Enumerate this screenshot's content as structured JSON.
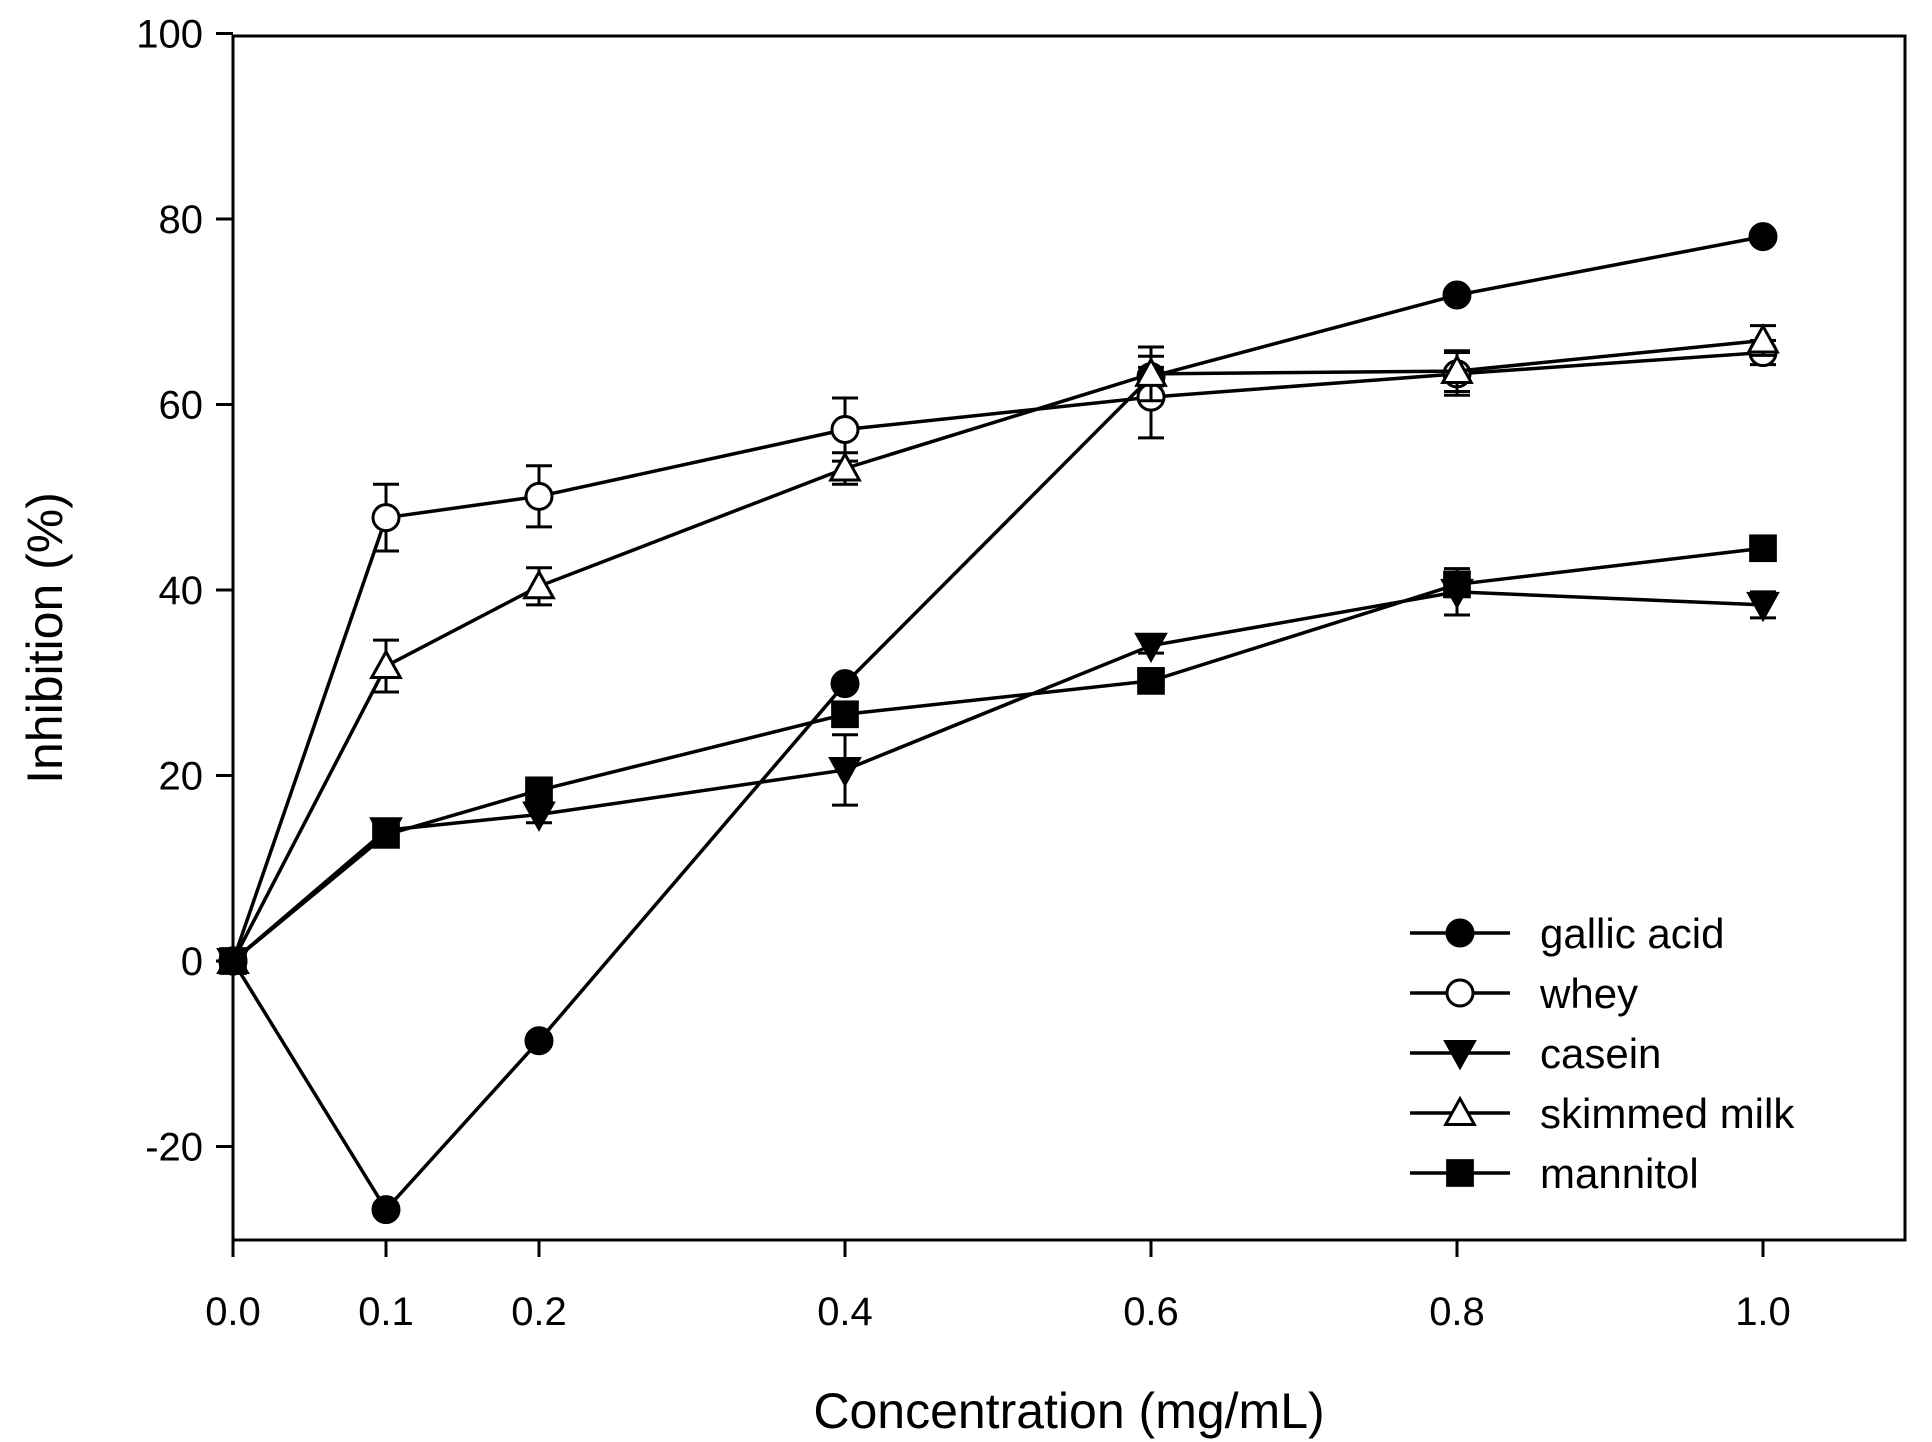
{
  "chart_data": {
    "type": "line",
    "title": "",
    "xlabel": "Concentration (mg/mL)",
    "ylabel": "Inhibition (%)",
    "xlim": [
      0,
      1.1
    ],
    "ylim": [
      -30,
      100
    ],
    "xticks": [
      0.0,
      0.1,
      0.2,
      0.4,
      0.6,
      0.8,
      1.0
    ],
    "xtick_labels": [
      "0.0",
      "0.1",
      "0.2",
      "0.4",
      "0.6",
      "0.8",
      "1.0"
    ],
    "yticks": [
      -20,
      0,
      20,
      40,
      60,
      80,
      100
    ],
    "ytick_labels": [
      "-20",
      "0",
      "20",
      "40",
      "60",
      "80",
      "100"
    ],
    "grid": false,
    "legend_position": "bottom-right",
    "x": [
      0.0,
      0.1,
      0.2,
      0.4,
      0.6,
      0.8,
      1.0
    ],
    "series": [
      {
        "name": "gallic acid",
        "marker": "filled-circle",
        "values": [
          0,
          -26.8,
          -8.6,
          29.9,
          63.0,
          71.8,
          78.1
        ],
        "errors": [
          0,
          0.6,
          0.6,
          0.5,
          1.0,
          0.5,
          0.5
        ]
      },
      {
        "name": "whey",
        "marker": "open-circle",
        "values": [
          0,
          47.8,
          50.1,
          57.3,
          60.8,
          63.3,
          65.6
        ],
        "errors": [
          0,
          3.6,
          3.3,
          3.4,
          4.4,
          2.3,
          1.3
        ]
      },
      {
        "name": "casein",
        "marker": "filled-triangle-down",
        "values": [
          0,
          14.1,
          15.8,
          20.6,
          34.0,
          39.8,
          38.4
        ],
        "errors": [
          0,
          0.8,
          0.9,
          3.8,
          0.8,
          2.5,
          1.4
        ]
      },
      {
        "name": "skimmed milk",
        "marker": "open-triangle-up",
        "values": [
          0,
          31.8,
          40.4,
          53.1,
          63.3,
          63.6,
          66.9
        ],
        "errors": [
          0,
          2.8,
          2.0,
          1.7,
          2.9,
          2.2,
          1.6
        ]
      },
      {
        "name": "mannitol",
        "marker": "filled-square",
        "values": [
          0,
          13.6,
          18.4,
          26.6,
          30.2,
          40.6,
          44.5
        ],
        "errors": [
          0,
          0.8,
          0.8,
          0.6,
          0.6,
          0.6,
          0.6
        ]
      }
    ]
  }
}
